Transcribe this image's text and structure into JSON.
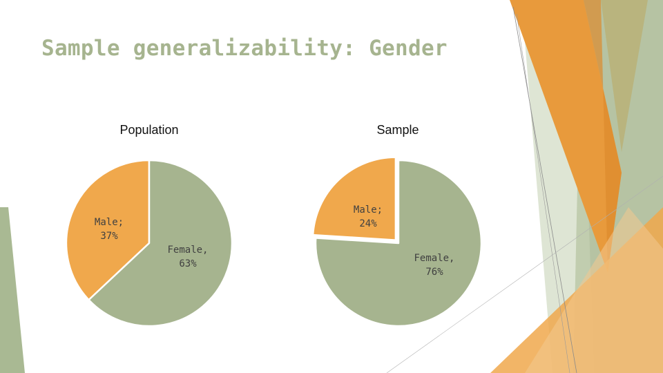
{
  "slide": {
    "title": "Sample generalizability: Gender"
  },
  "colors": {
    "female": "#a6b48f",
    "male": "#f0a84c",
    "title": "#a6b48f",
    "decor_orange": "#e89a3c",
    "decor_green": "#a9b993",
    "decor_olive": "#b9b27a"
  },
  "chart_data": [
    {
      "type": "pie",
      "title": "Population",
      "slices": [
        {
          "name": "Male",
          "value": 37,
          "label_name": "Male;",
          "label_value": "37%",
          "color": "#f0a84c"
        },
        {
          "name": "Female",
          "value": 63,
          "label_name": "Female,",
          "label_value": "63%",
          "color": "#a6b48f"
        }
      ]
    },
    {
      "type": "pie",
      "title": "Sample",
      "slices": [
        {
          "name": "Male",
          "value": 24,
          "label_name": "Male;",
          "label_value": "24%",
          "color": "#f0a84c"
        },
        {
          "name": "Female",
          "value": 76,
          "label_name": "Female,",
          "label_value": "76%",
          "color": "#a6b48f"
        }
      ]
    }
  ]
}
